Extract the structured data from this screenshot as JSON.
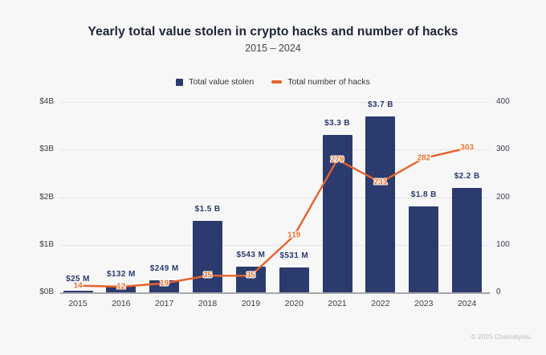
{
  "page": {
    "background": "#f7f7f8",
    "attribution": "© 2025 Chainalysis."
  },
  "chart_data": {
    "type": "combo-bar-line",
    "title": "Yearly total value stolen in crypto hacks and number of hacks",
    "subtitle": "2015 – 2024",
    "categories": [
      "2015",
      "2016",
      "2017",
      "2018",
      "2019",
      "2020",
      "2021",
      "2022",
      "2023",
      "2024"
    ],
    "series": [
      {
        "name": "Total value stolen",
        "type": "bar",
        "axis": "left",
        "unit": "USD millions",
        "values": [
          25,
          132,
          249,
          1500,
          543,
          531,
          3300,
          3700,
          1800,
          2200
        ],
        "labels": [
          "$25 M",
          "$132 M",
          "$249 M",
          "$1.5 B",
          "$543 M",
          "$531 M",
          "$3.3 B",
          "$3.7 B",
          "$1.8 B",
          "$2.2 B"
        ],
        "color": "#2b3b6e"
      },
      {
        "name": "Total number of hacks",
        "type": "line",
        "axis": "right",
        "values": [
          14,
          12,
          19,
          35,
          35,
          119,
          279,
          231,
          282,
          303
        ],
        "color": "#e8622a"
      }
    ],
    "left_axis": {
      "ticks": [
        "$4B",
        "$3B",
        "$2B",
        "$1B",
        "$0B"
      ],
      "min": 0,
      "max": 4000,
      "unit": "USD millions"
    },
    "right_axis": {
      "ticks": [
        "400",
        "300",
        "200",
        "100",
        "0"
      ],
      "min": 0,
      "max": 400
    },
    "grid": true,
    "legend_position": "top-center",
    "label_halo_color": "#ffffff"
  }
}
